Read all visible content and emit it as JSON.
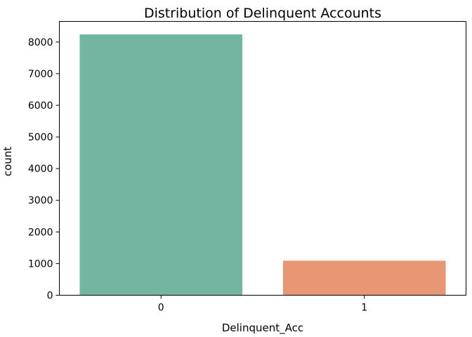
{
  "chart_data": {
    "type": "bar",
    "title": "Distribution of Delinquent Accounts",
    "xlabel": "Delinquent_Acc",
    "ylabel": "count",
    "categories": [
      "0",
      "1"
    ],
    "values": [
      8240,
      1090
    ],
    "colors": [
      "#72b6a1",
      "#e99675"
    ],
    "ylim": [
      0,
      8650
    ],
    "yticks": [
      0,
      1000,
      2000,
      3000,
      4000,
      5000,
      6000,
      7000,
      8000
    ],
    "grid": false,
    "legend": "none"
  }
}
